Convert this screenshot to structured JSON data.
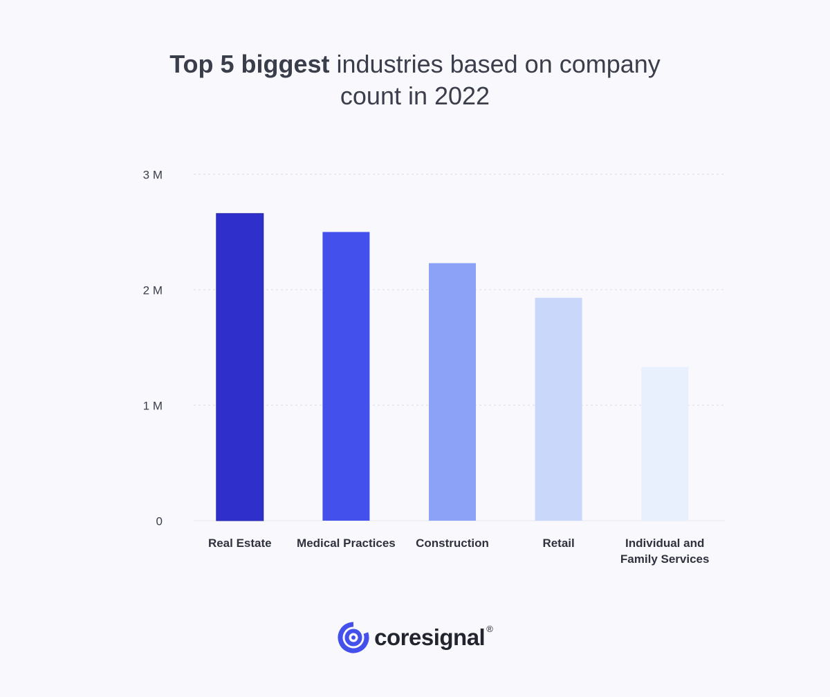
{
  "title": {
    "bold": "Top 5 biggest",
    "line1_rest": " industries based on company",
    "line2": "count in 2022"
  },
  "chart_data": {
    "type": "bar",
    "title": "Top 5 biggest industries based on company count in 2022",
    "categories": [
      [
        "Real Estate"
      ],
      [
        "Medical Practices"
      ],
      [
        "Construction"
      ],
      [
        "Retail"
      ],
      [
        "Individual and",
        "Family Services"
      ]
    ],
    "values": [
      2660000,
      2500000,
      2230000,
      1930000,
      1330000
    ],
    "colors": [
      "#2f2fcb",
      "#4450ec",
      "#8ca2f7",
      "#c9d8fa",
      "#e9f0fd"
    ],
    "yticks": [
      0,
      1000000,
      2000000,
      3000000
    ],
    "ytick_labels": [
      "0",
      "1 M",
      "2 M",
      "3 M"
    ],
    "ylim": [
      0,
      3000000
    ],
    "grid": true,
    "xlabel": "",
    "ylabel": ""
  },
  "logo": {
    "text": "coresignal",
    "reg": "®",
    "icon": "coresignal-logo-icon"
  }
}
